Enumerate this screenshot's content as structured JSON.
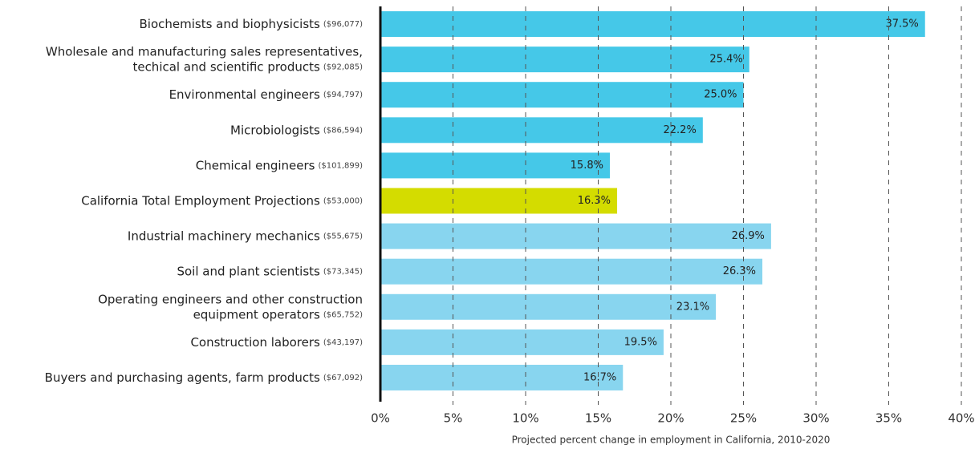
{
  "chart_data": {
    "type": "bar",
    "orientation": "horizontal",
    "categories": [
      [
        "Biochemists and biophysicists"
      ],
      [
        "Wholesale and manufacturing sales representatives,",
        "techical and scientific products"
      ],
      [
        "Environmental engineers"
      ],
      [
        "Microbiologists"
      ],
      [
        "Chemical engineers"
      ],
      [
        "California Total Employment Projections"
      ],
      [
        "Industrial machinery mechanics"
      ],
      [
        "Soil and plant scientists"
      ],
      [
        "Operating engineers and other construction",
        "equipment operators"
      ],
      [
        "Construction laborers"
      ],
      [
        "Buyers and purchasing agents, farm products"
      ]
    ],
    "salaries": [
      "($96,077)",
      "($92,085)",
      "($94,797)",
      "($86,594)",
      "($101,899)",
      "($53,000)",
      "($55,675)",
      "($73,345)",
      "($65,752)",
      "($43,197)",
      "($67,092)"
    ],
    "values": [
      37.5,
      25.4,
      25.0,
      22.2,
      15.8,
      16.3,
      26.9,
      26.3,
      23.1,
      19.5,
      16.7
    ],
    "value_labels": [
      "37.5%",
      "25.4%",
      "25.0%",
      "22.2%",
      "15.8%",
      "16.3%",
      "26.9%",
      "26.3%",
      "23.1%",
      "19.5%",
      "16.7%"
    ],
    "colors": [
      "#45c8e8",
      "#45c8e8",
      "#45c8e8",
      "#45c8e8",
      "#45c8e8",
      "#d4dc00",
      "#88d5ef",
      "#88d5ef",
      "#88d5ef",
      "#88d5ef",
      "#88d5ef"
    ],
    "xlim": [
      0,
      40
    ],
    "xticks": [
      {
        "value": 0,
        "label": "0%"
      },
      {
        "value": 5,
        "label": "5%"
      },
      {
        "value": 10,
        "label": "10%"
      },
      {
        "value": 15,
        "label": "15%"
      },
      {
        "value": 20,
        "label": "20%"
      },
      {
        "value": 25,
        "label": "25%"
      },
      {
        "value": 30,
        "label": "30%"
      },
      {
        "value": 35,
        "label": "35%"
      },
      {
        "value": 40,
        "label": "40%"
      }
    ],
    "xlabel": "Projected percent change in employment in California, 2010-2020",
    "grid": true
  }
}
